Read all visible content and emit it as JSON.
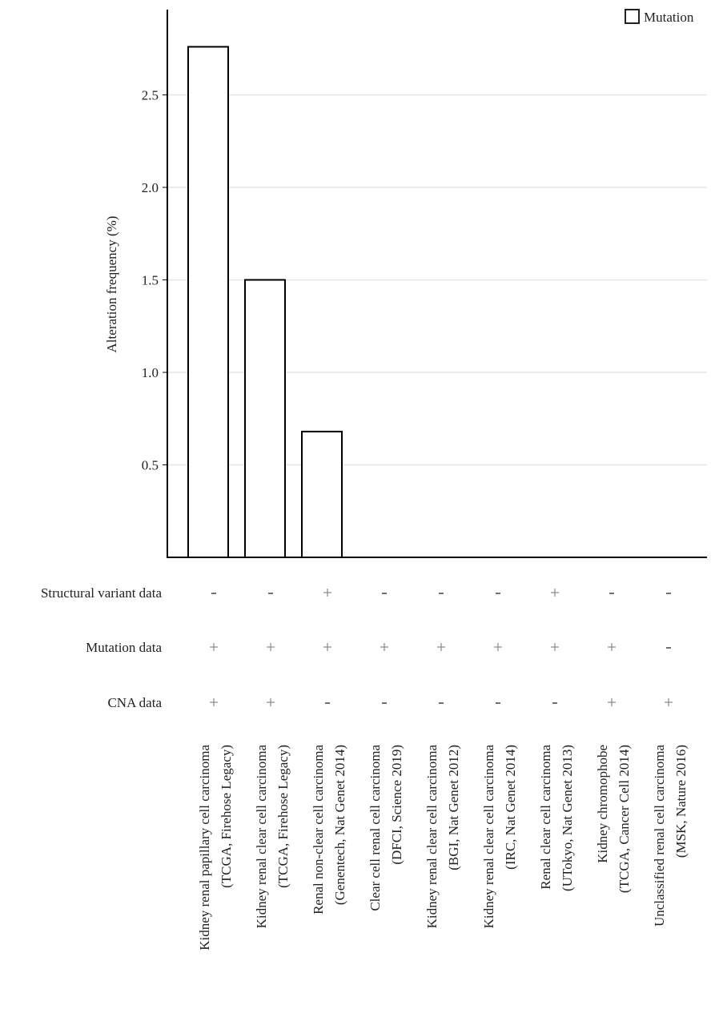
{
  "chart_data": {
    "type": "bar",
    "ylabel": "Alteration frequency (%)",
    "xlabel": "",
    "ylim": [
      0,
      2.97
    ],
    "yticks": [
      "0.5",
      "1.0",
      "1.5",
      "2.0",
      "2.5"
    ],
    "grid": true,
    "legend": {
      "placement": "top-right",
      "entries": [
        "Mutation"
      ]
    },
    "categories": [
      [
        "Kidney renal papillary cell carcinoma",
        "(TCGA, Firehose Legacy)"
      ],
      [
        "Kidney renal clear cell carcinoma",
        "(TCGA, Firehose Legacy)"
      ],
      [
        "Renal non-clear cell carcinoma",
        "(Genentech, Nat Genet 2014)"
      ],
      [
        "Clear cell renal cell carcinoma",
        "(DFCI, Science 2019)"
      ],
      [
        "Kidney renal clear cell carcinoma",
        "(BGI, Nat Genet 2012)"
      ],
      [
        "Kidney renal clear cell carcinoma",
        "(IRC, Nat Genet 2014)"
      ],
      [
        "Renal clear cell carcinoma",
        "(UTokyo, Nat Genet 2013)"
      ],
      [
        "Kidney chromophobe",
        "(TCGA, Cancer Cell 2014)"
      ],
      [
        "Unclassified renal cell carcinoma",
        "(MSK, Nature 2016)"
      ]
    ],
    "series": [
      {
        "name": "Mutation",
        "values": [
          2.76,
          1.5,
          0.68,
          0,
          0,
          0,
          0,
          0,
          0
        ]
      }
    ],
    "data_table": [
      {
        "label": "Structural variant data",
        "values": [
          "-",
          "-",
          "+",
          "-",
          "-",
          "-",
          "+",
          "-",
          "-"
        ]
      },
      {
        "label": "Mutation data",
        "values": [
          "+",
          "+",
          "+",
          "+",
          "+",
          "+",
          "+",
          "+",
          "-"
        ]
      },
      {
        "label": "CNA data",
        "values": [
          "+",
          "+",
          "-",
          "-",
          "-",
          "-",
          "-",
          "+",
          "+"
        ]
      }
    ],
    "colors": {
      "bar_fill": "#ffffff",
      "bar_stroke": "#000000",
      "grid": "#e6e6e6"
    }
  }
}
